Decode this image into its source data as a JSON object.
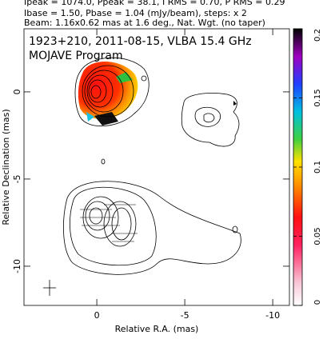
{
  "chart_data": {
    "type": "contour-map",
    "header": [
      "Ipeak = 1074.0, Ppeak = 38.1, I RMS = 0.70, P RMS = 0.29",
      "Ibase = 1.50, Pbase = 1.04 (mJy/beam), steps: x 2",
      "Beam: 1.16x0.62 mas at 1.6 deg., Nat. Wgt. (no taper)"
    ],
    "title": "1923+210, 2011-08-15, VLBA 15.4 GHz",
    "subtitle": "MOJAVE Program",
    "x_label": "Relative R.A. (mas)",
    "y_label": "Relative Declination (mas)",
    "xlim": [
      4.14,
      -10.95
    ],
    "xticks": [
      0,
      -5,
      -10
    ],
    "ylim": [
      -12.25,
      3.62
    ],
    "yticks": [
      0,
      -5,
      -10
    ],
    "colorbar": {
      "ylim": [
        0,
        0.2
      ],
      "yticks": [
        0,
        0.05,
        0.1,
        0.15,
        0.2
      ]
    }
  }
}
